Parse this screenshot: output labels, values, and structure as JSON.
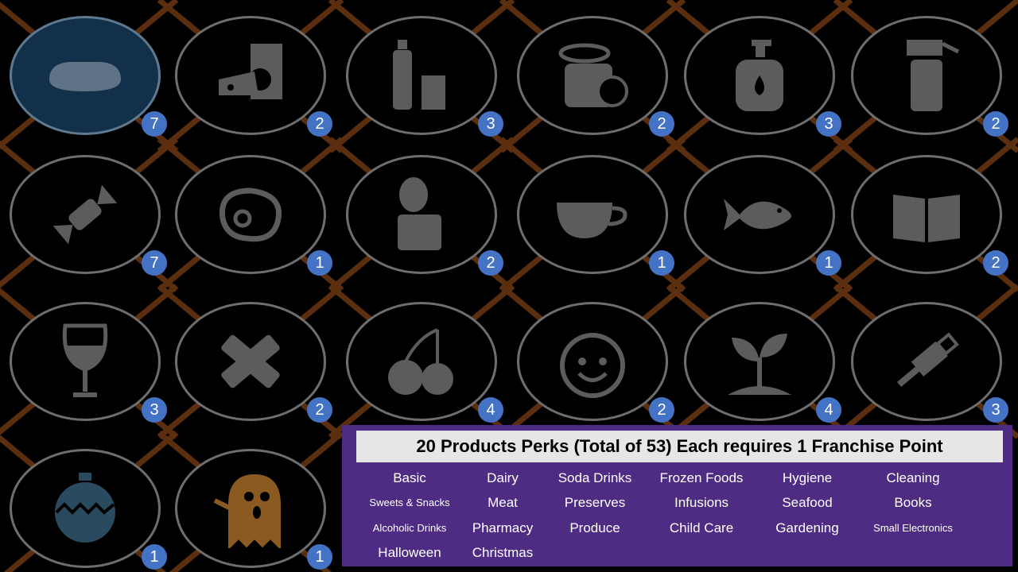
{
  "colors": {
    "badge": "#4472c4",
    "legend_bg": "#4f2c84",
    "connector": "#5a2e0e",
    "selected_fill": "#12304a"
  },
  "perks": [
    {
      "name": "Basic",
      "icon": "bread-icon",
      "count": "7",
      "selected": true
    },
    {
      "name": "Dairy",
      "icon": "cheese-milk-icon",
      "count": "2"
    },
    {
      "name": "Soda Drinks",
      "icon": "bottle-can-icon",
      "count": "3"
    },
    {
      "name": "Frozen Foods",
      "icon": "frozen-can-icon",
      "count": "2"
    },
    {
      "name": "Hygiene",
      "icon": "soap-dispenser-icon",
      "count": "3"
    },
    {
      "name": "Cleaning",
      "icon": "spray-bottle-icon",
      "count": "2"
    },
    {
      "name": "Sweets & Snacks",
      "icon": "candy-icon",
      "count": "7"
    },
    {
      "name": "Meat",
      "icon": "steak-icon",
      "count": "1"
    },
    {
      "name": "Preserves",
      "icon": "open-tin-icon",
      "count": "2"
    },
    {
      "name": "Infusions",
      "icon": "cup-icon",
      "count": "1"
    },
    {
      "name": "Seafood",
      "icon": "fish-icon",
      "count": "1"
    },
    {
      "name": "Books",
      "icon": "book-icon",
      "count": "2"
    },
    {
      "name": "Alcoholic Drinks",
      "icon": "wine-glass-icon",
      "count": "3"
    },
    {
      "name": "Pharmacy",
      "icon": "bandage-icon",
      "count": "2"
    },
    {
      "name": "Produce",
      "icon": "cherries-icon",
      "count": "4"
    },
    {
      "name": "Child Care",
      "icon": "baby-face-icon",
      "count": "2"
    },
    {
      "name": "Gardening",
      "icon": "sprout-icon",
      "count": "4"
    },
    {
      "name": "Small Electronics",
      "icon": "usb-icon",
      "count": "3"
    },
    {
      "name": "Christmas",
      "icon": "ornament-icon",
      "count": "1"
    },
    {
      "name": "Halloween",
      "icon": "ghost-icon",
      "count": "1"
    }
  ],
  "legend": {
    "title": "20 Products Perks (Total of 53) Each requires 1 Franchise Point",
    "rows": [
      [
        "Basic",
        "Dairy",
        "Soda Drinks",
        "Frozen Foods",
        "Hygiene",
        "Cleaning"
      ],
      [
        "Sweets & Snacks",
        "Meat",
        "Preserves",
        "Infusions",
        "Seafood",
        "Books"
      ],
      [
        "Alcoholic Drinks",
        "Pharmacy",
        "Produce",
        "Child Care",
        "Gardening",
        "Small Electronics"
      ],
      [
        "Halloween",
        "Christmas"
      ]
    ]
  }
}
